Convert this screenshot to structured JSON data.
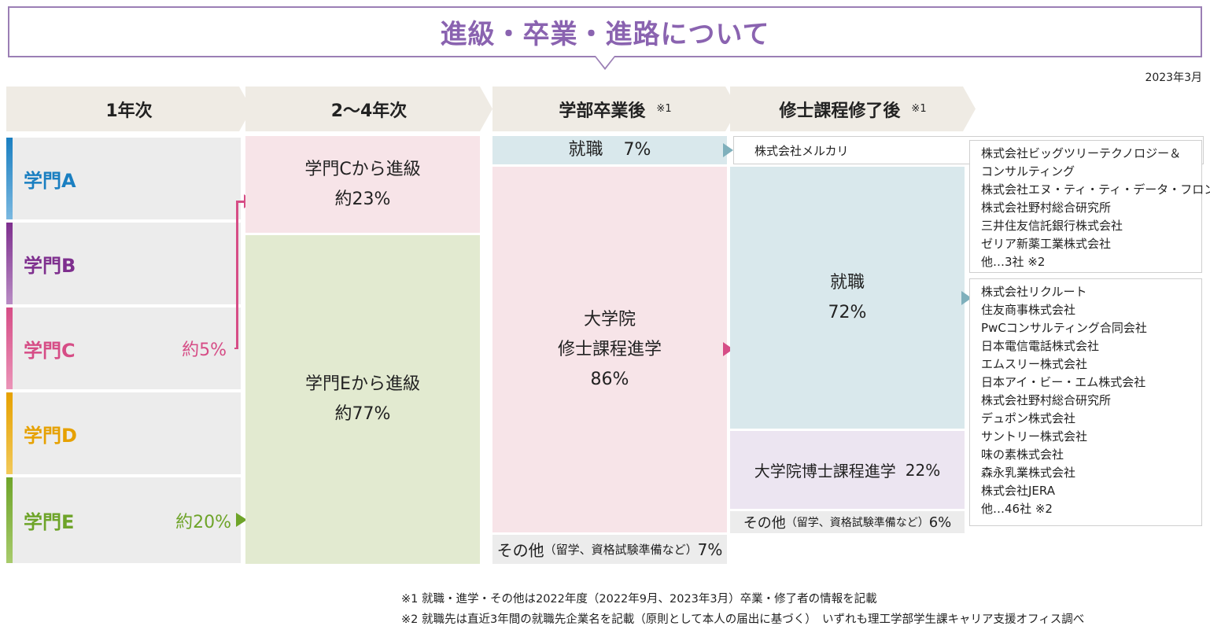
{
  "title": "進級・卒業・進路について",
  "date": "2023年3月",
  "stages": {
    "year1": "1年次",
    "year2to4": "2〜4年次",
    "after_undergrad": "学部卒業後",
    "after_undergrad_note": "※1",
    "after_master": "修士課程修了後",
    "after_master_note": "※1"
  },
  "departments": [
    {
      "name": "学門A",
      "color": "#1a7fc1",
      "pct": ""
    },
    {
      "name": "学門B",
      "color": "#7e2f8e",
      "pct": ""
    },
    {
      "name": "学門C",
      "color": "#d64d86",
      "pct": "約5%"
    },
    {
      "name": "学門D",
      "color": "#e6a100",
      "pct": ""
    },
    {
      "name": "学門E",
      "color": "#6ea429",
      "pct": "約20%"
    }
  ],
  "promotion": {
    "from_c_label": "学門Cから進級",
    "from_c_pct": "約23%",
    "from_e_label": "学門Eから進級",
    "from_e_pct": "約77%"
  },
  "undergrad": {
    "employment_label": "就職",
    "employment_pct": "7%",
    "grad_line1": "大学院",
    "grad_line2": "修士課程進学",
    "grad_pct": "86%",
    "other_main": "その他",
    "other_detail": "（留学、資格試験準備など）",
    "other_pct": "7%"
  },
  "master": {
    "undergrad_employer": "株式会社メルカリ",
    "employment_label": "就職",
    "employment_pct": "72%",
    "doctoral": "大学院博士課程進学",
    "doctoral_pct": "22%",
    "other_main": "その他",
    "other_detail": "（留学、資格試験準備など）",
    "other_pct": "6%"
  },
  "companies_undergrad": [
    "株式会社ビッグツリーテクノロジー＆",
    "コンサルティング",
    "株式会社エヌ・ティ・ティ・データ・フロンティア",
    "株式会社野村総合研究所",
    "三井住友信託銀行株式会社",
    "ゼリア新薬工業株式会社",
    "他…3社 ※2"
  ],
  "companies_master": [
    "株式会社リクルート",
    "住友商事株式会社",
    "PwCコンサルティング合同会社",
    "日本電信電話株式会社",
    "エムスリー株式会社",
    "日本アイ・ビー・エム株式会社",
    "株式会社野村総合研究所",
    "デュポン株式会社",
    "サントリー株式会社",
    "味の素株式会社",
    "森永乳業株式会社",
    "株式会社JERA",
    "他…46社 ※2"
  ],
  "footnotes": [
    "※1 就職・進学・その他は2022年度（2022年9月、2023年3月）卒業・修了者の情報を記載",
    "※2 就職先は直近3年間の就職先企業名を記載（原則として本人の届出に基づく）　いずれも理工学部学生課キャリア支援オフィス調べ"
  ],
  "colors": {
    "title_border": "#9b7fb5",
    "title_text": "#8a63b0",
    "pink_bg": "#f7e4e8",
    "green_bg": "#e2ead0",
    "blue_bg": "#d9e8ec",
    "purple_bg": "#ece5f1",
    "gray_bg": "#ececec",
    "arrow_teal": "#7fb0bc",
    "arrow_pink": "#d64d86",
    "arrow_green": "#6ea429"
  }
}
